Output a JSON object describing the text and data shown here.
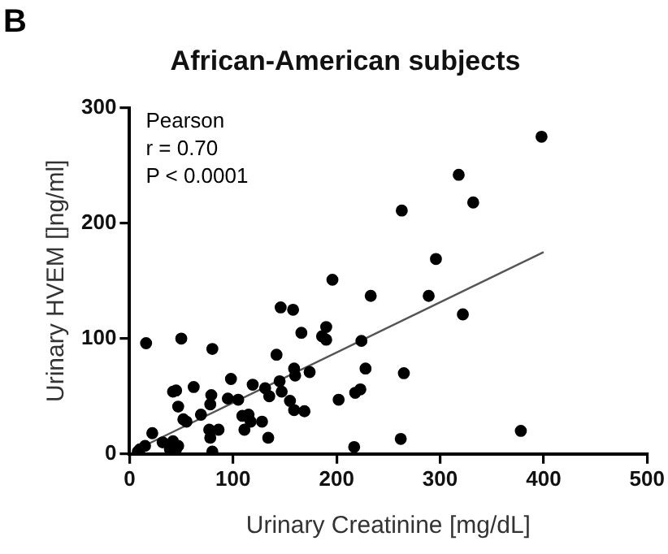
{
  "chart_data": {
    "type": "scatter",
    "title": "African-American subjects",
    "xlabel": "Urinary Creatinine [mg/dL]",
    "ylabel": "Urinary HVEM []ng/ml]",
    "annotations": [
      "B",
      "Pearson",
      "r = 0.70",
      "P < 0.0001"
    ],
    "xlim": [
      0,
      500
    ],
    "xticks": [
      0,
      100,
      200,
      300,
      400,
      500
    ],
    "ylim": [
      0,
      300
    ],
    "yticks": [
      0,
      100,
      200,
      300
    ],
    "grid": false,
    "legend": false,
    "marker": "circle",
    "series": [
      {
        "color": "#000000",
        "x": [
          16,
          50,
          80,
          196,
          233,
          146,
          158,
          166,
          190,
          186,
          190,
          224,
          142,
          159,
          160,
          174,
          228,
          42,
          45,
          62,
          98,
          119,
          131,
          135,
          145,
          147,
          155,
          159,
          169,
          202,
          218,
          223,
          79,
          78,
          95,
          69,
          47,
          52,
          55,
          105,
          109,
          115,
          117,
          111,
          128,
          134,
          77,
          78,
          86,
          80,
          22,
          32,
          42,
          45,
          47,
          39,
          10,
          15,
          8,
          217,
          398,
          318,
          332,
          263,
          296,
          289,
          322,
          265,
          262,
          378
        ],
        "values": [
          96,
          100,
          91,
          151,
          137,
          127,
          125,
          105,
          110,
          102,
          99,
          98,
          86,
          74,
          68,
          71,
          74,
          54,
          55,
          58,
          65,
          60,
          57,
          50,
          63,
          54,
          46,
          38,
          37,
          47,
          53,
          56,
          51,
          43,
          48,
          34,
          41,
          30,
          28,
          47,
          33,
          34,
          28,
          21,
          28,
          14,
          21,
          14,
          21,
          2,
          18,
          10,
          11,
          4,
          7,
          4,
          4,
          7,
          2,
          6,
          275,
          242,
          218,
          211,
          169,
          137,
          121,
          70,
          13,
          20
        ]
      },
      {
        "type": "line",
        "color": "#555555",
        "x": [
          5,
          400
        ],
        "values": [
          3,
          175
        ],
        "marker": "none"
      }
    ]
  }
}
